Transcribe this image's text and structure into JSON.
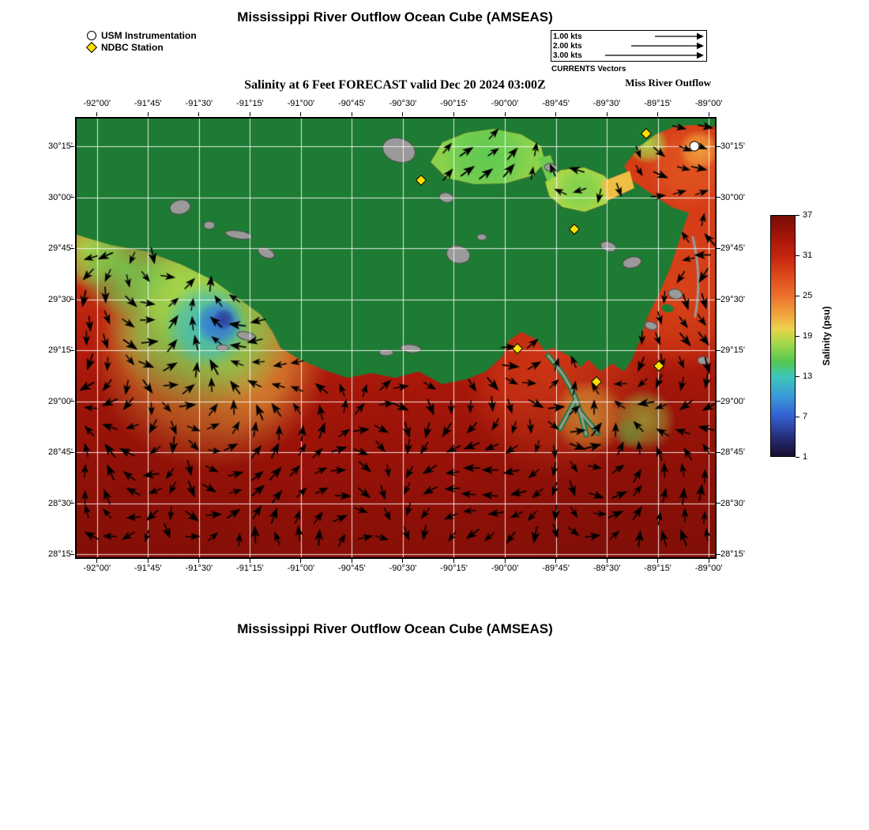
{
  "header": {
    "title": "Mississippi River Outflow Ocean Cube (AMSEAS)",
    "subtitle": "Salinity at 6 Feet FORECAST valid Dec 20 2024 03:00Z",
    "region_label": "Miss River Outflow"
  },
  "footer": {
    "title": "Mississippi River Outflow Ocean Cube (AMSEAS)"
  },
  "legend": {
    "usm": "USM Instrumentation",
    "ndbc": "NDBC Station"
  },
  "vector_key": {
    "caption": "CURRENTS Vectors",
    "rows": [
      {
        "label": "1.00 kts",
        "length": 55
      },
      {
        "label": "2.00 kts",
        "length": 85
      },
      {
        "label": "3.00 kts",
        "length": 118
      }
    ]
  },
  "colors": {
    "land": "#1e7b33",
    "island_gray": "#9a9a9a",
    "grid": "#ffffff",
    "arrow": "#000000",
    "ndbc_marker": "#ffdf00",
    "usm_marker": "#ffffff"
  },
  "chart_data": {
    "type": "heatmap",
    "title": "Mississippi River Outflow Ocean Cube (AMSEAS)",
    "subtitle": "Salinity at 6 Feet FORECAST valid Dec 20 2024 03:00Z",
    "variable": "Salinity",
    "units": "psu",
    "depth_ft": 6,
    "valid_time": "Dec 20 2024 03:00Z",
    "overlay": "surface current vectors (kts)",
    "x_axis": {
      "ticks": [
        "-92°00'",
        "-91°45'",
        "-91°30'",
        "-91°15'",
        "-91°00'",
        "-90°45'",
        "-90°30'",
        "-90°15'",
        "-90°00'",
        "-89°45'",
        "-89°30'",
        "-89°15'",
        "-89°00'"
      ],
      "tick_values_deg": [
        -92.0,
        -91.75,
        -91.5,
        -91.25,
        -91.0,
        -90.75,
        -90.5,
        -90.25,
        -90.0,
        -89.75,
        -89.5,
        -89.25,
        -89.0
      ]
    },
    "y_axis": {
      "ticks": [
        "28°15'",
        "28°30'",
        "28°45'",
        "29°00'",
        "29°15'",
        "29°30'",
        "29°45'",
        "30°00'",
        "30°15'"
      ],
      "tick_values_deg": [
        28.25,
        28.5,
        28.75,
        29.0,
        29.25,
        29.5,
        29.75,
        30.0,
        30.25
      ]
    },
    "colorbar": {
      "label": "Salinity (psu)",
      "min": 1,
      "max": 37,
      "ticks": [
        37,
        31,
        25,
        19,
        13,
        7,
        1
      ],
      "stops": [
        {
          "v": 37,
          "c": "#780e06"
        },
        {
          "v": 34,
          "c": "#a31409"
        },
        {
          "v": 31,
          "c": "#c4230f"
        },
        {
          "v": 28,
          "c": "#dd4a1b"
        },
        {
          "v": 25,
          "c": "#ec702d"
        },
        {
          "v": 22,
          "c": "#f2a83e"
        },
        {
          "v": 20,
          "c": "#e9d44c"
        },
        {
          "v": 18,
          "c": "#a7d84a"
        },
        {
          "v": 15,
          "c": "#52c754"
        },
        {
          "v": 13,
          "c": "#3cc8b8"
        },
        {
          "v": 10,
          "c": "#389ad8"
        },
        {
          "v": 7,
          "c": "#3460d2"
        },
        {
          "v": 4,
          "c": "#28307c"
        },
        {
          "v": 1,
          "c": "#170f30"
        }
      ]
    },
    "stations_ndbc": [
      {
        "lon": -90.41,
        "lat": 30.084
      },
      {
        "lon": -89.305,
        "lat": 30.312
      },
      {
        "lon": -89.66,
        "lat": 29.845
      },
      {
        "lon": -89.94,
        "lat": 29.26
      },
      {
        "lon": -89.55,
        "lat": 29.095
      },
      {
        "lon": -89.245,
        "lat": 29.175
      }
    ],
    "stations_usm": [
      {
        "lon": -89.07,
        "lat": 30.25
      }
    ],
    "salinity_features_psu": [
      {
        "name": "open-gulf",
        "salinity": 33
      },
      {
        "name": "deep-gulf-south",
        "salinity": 36
      },
      {
        "name": "atchafalaya-low-salinity-plume",
        "lon": -91.4,
        "lat": 29.4,
        "salinity": 6
      },
      {
        "name": "lake-pontchartrain",
        "lon": -90.1,
        "lat": 30.18,
        "salinity": 17
      },
      {
        "name": "lake-borgne",
        "lon": -89.65,
        "lat": 30.05,
        "salinity": 18
      },
      {
        "name": "mississippi-sound-northeast",
        "salinity": 28
      },
      {
        "name": "delta-nearshore-plume",
        "lon": -89.6,
        "lat": 28.95,
        "salinity": 22
      }
    ]
  }
}
